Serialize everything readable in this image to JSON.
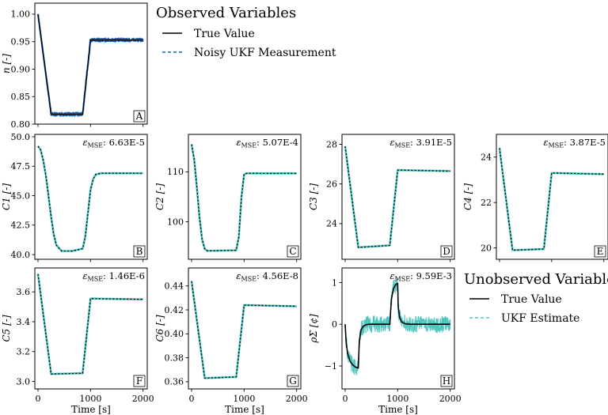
{
  "legends": {
    "observed": {
      "title": "Observed Variables",
      "entries": [
        "True Value",
        "Noisy UKF Measurement"
      ]
    },
    "unobserved": {
      "title": "Unobserved Variables",
      "entries": [
        "True Value",
        "UKF Estimate"
      ]
    }
  },
  "colors": {
    "true": "#000000",
    "measurement": "#1f5fa8",
    "estimate": "#4ec7c0"
  },
  "chart_data": [
    {
      "id": "A",
      "type": "line",
      "ylabel": "n [-]",
      "ylim": [
        0.8,
        1.02
      ],
      "xlim": [
        -60,
        2080
      ],
      "yticks": [
        0.8,
        0.85,
        0.9,
        0.95,
        1.0
      ],
      "ytick_labels": [
        "0.80",
        "0.85",
        "0.90",
        "0.95",
        "1.00"
      ],
      "xticks": [],
      "xlabel": "",
      "mse": "",
      "series": [
        {
          "name": "True Value",
          "x": [
            0,
            250,
            850,
            1000,
            2000
          ],
          "y": [
            1.0,
            0.818,
            0.818,
            0.953,
            0.953
          ]
        },
        {
          "name": "Noisy UKF Measurement",
          "x": [
            0,
            250,
            850,
            1000,
            2000
          ],
          "y": [
            1.0,
            0.818,
            0.818,
            0.953,
            0.953
          ],
          "noise": 0.003
        }
      ]
    },
    {
      "id": "B",
      "type": "line",
      "ylabel": "C1 [-]",
      "ylim": [
        39.6,
        50.2
      ],
      "xlim": [
        -60,
        2080
      ],
      "yticks": [
        40,
        42.5,
        45,
        47.5,
        50
      ],
      "ytick_labels": [
        "40.0",
        "42.5",
        "45.0",
        "47.5",
        "50.0"
      ],
      "xticks": [],
      "xlabel": "",
      "mse": "6.63E-5",
      "series": [
        {
          "name": "True Value",
          "x": [
            0,
            50,
            100,
            150,
            200,
            250,
            300,
            350,
            450,
            650,
            850,
            900,
            950,
            1000,
            1050,
            1100,
            1200,
            1400,
            2000
          ],
          "y": [
            49.2,
            48.9,
            48.0,
            46.7,
            45.0,
            43.2,
            41.7,
            40.8,
            40.3,
            40.3,
            40.5,
            41.5,
            43.5,
            45.5,
            46.4,
            46.8,
            46.9,
            46.9,
            46.9
          ]
        },
        {
          "name": "UKF Estimate",
          "x": [
            0,
            50,
            100,
            150,
            200,
            250,
            300,
            350,
            450,
            650,
            850,
            900,
            950,
            1000,
            1050,
            1100,
            1200,
            1400,
            2000
          ],
          "y": [
            49.2,
            48.9,
            48.0,
            46.7,
            45.0,
            43.2,
            41.7,
            40.8,
            40.3,
            40.3,
            40.5,
            41.5,
            43.5,
            45.5,
            46.4,
            46.8,
            46.9,
            46.9,
            46.9
          ]
        }
      ]
    },
    {
      "id": "C",
      "type": "line",
      "ylabel": "C2 [-]",
      "ylim": [
        92.5,
        117.5
      ],
      "xlim": [
        -60,
        2080
      ],
      "yticks": [
        100,
        110
      ],
      "ytick_labels": [
        "100",
        "110"
      ],
      "xticks": [],
      "xlabel": "",
      "mse": "5.07E-4",
      "series": [
        {
          "name": "True Value",
          "x": [
            0,
            50,
            100,
            150,
            200,
            250,
            300,
            350,
            850,
            900,
            950,
            1000,
            1050,
            2000
          ],
          "y": [
            115.5,
            112.5,
            107.0,
            101.0,
            96.5,
            94.6,
            94.2,
            94.2,
            94.3,
            97.0,
            105.0,
            109.5,
            109.7,
            109.7
          ]
        },
        {
          "name": "UKF Estimate",
          "x": [
            0,
            50,
            100,
            150,
            200,
            250,
            300,
            350,
            850,
            900,
            950,
            1000,
            1050,
            2000
          ],
          "y": [
            115.5,
            112.5,
            107.0,
            101.0,
            96.5,
            94.6,
            94.2,
            94.2,
            94.3,
            97.0,
            105.0,
            109.5,
            109.7,
            109.7
          ]
        }
      ]
    },
    {
      "id": "D",
      "type": "line",
      "ylabel": "C3 [-]",
      "ylim": [
        22.2,
        28.5
      ],
      "xlim": [
        -60,
        2080
      ],
      "yticks": [
        24,
        26,
        28
      ],
      "ytick_labels": [
        "24",
        "26",
        "28"
      ],
      "xticks": [],
      "xlabel": "",
      "mse": "3.91E-5",
      "series": [
        {
          "name": "True Value",
          "x": [
            0,
            250,
            850,
            1000,
            2000
          ],
          "y": [
            27.9,
            22.8,
            22.9,
            26.7,
            26.65
          ]
        },
        {
          "name": "UKF Estimate",
          "x": [
            0,
            250,
            850,
            1000,
            2000
          ],
          "y": [
            27.9,
            22.8,
            22.9,
            26.7,
            26.65
          ]
        }
      ]
    },
    {
      "id": "E",
      "type": "line",
      "ylabel": "C4 [-]",
      "ylim": [
        19.5,
        25.0
      ],
      "xlim": [
        -60,
        2080
      ],
      "yticks": [
        20,
        22,
        24
      ],
      "ytick_labels": [
        "20",
        "22",
        "24"
      ],
      "xticks": [],
      "xlabel": "",
      "mse": "3.87E-5",
      "series": [
        {
          "name": "True Value",
          "x": [
            0,
            250,
            850,
            1000,
            2000
          ],
          "y": [
            24.4,
            19.9,
            19.95,
            23.3,
            23.25
          ]
        },
        {
          "name": "UKF Estimate",
          "x": [
            0,
            250,
            850,
            1000,
            2000
          ],
          "y": [
            24.4,
            19.9,
            19.95,
            23.3,
            23.25
          ]
        }
      ]
    },
    {
      "id": "F",
      "type": "line",
      "ylabel": "C5 [-]",
      "ylim": [
        2.95,
        3.76
      ],
      "xlim": [
        -60,
        2080
      ],
      "yticks": [
        3.0,
        3.2,
        3.4,
        3.6
      ],
      "ytick_labels": [
        "3.0",
        "3.2",
        "3.4",
        "3.6"
      ],
      "xticks": [
        0,
        1000,
        2000
      ],
      "xtick_labels": [
        "0",
        "1000",
        "2000"
      ],
      "xlabel": "Time [s]",
      "mse": "1.46E-6",
      "series": [
        {
          "name": "True Value",
          "x": [
            0,
            250,
            850,
            1000,
            2000
          ],
          "y": [
            3.72,
            3.05,
            3.055,
            3.555,
            3.55
          ]
        },
        {
          "name": "UKF Estimate",
          "x": [
            0,
            250,
            850,
            1000,
            2000
          ],
          "y": [
            3.72,
            3.05,
            3.055,
            3.555,
            3.55
          ]
        }
      ]
    },
    {
      "id": "G",
      "type": "line",
      "ylabel": "C6 [-]",
      "ylim": [
        0.354,
        0.455
      ],
      "xlim": [
        -60,
        2080
      ],
      "yticks": [
        0.36,
        0.38,
        0.4,
        0.42,
        0.44
      ],
      "ytick_labels": [
        "0.36",
        "0.38",
        "0.40",
        "0.42",
        "0.44"
      ],
      "xticks": [
        0,
        1000,
        2000
      ],
      "xtick_labels": [
        "0",
        "1000",
        "2000"
      ],
      "xlabel": "Time [s]",
      "mse": "4.56E-8",
      "series": [
        {
          "name": "True Value",
          "x": [
            0,
            250,
            850,
            1000,
            2000
          ],
          "y": [
            0.444,
            0.363,
            0.364,
            0.424,
            0.423
          ]
        },
        {
          "name": "UKF Estimate",
          "x": [
            0,
            250,
            850,
            1000,
            2000
          ],
          "y": [
            0.444,
            0.363,
            0.364,
            0.424,
            0.423
          ]
        }
      ]
    },
    {
      "id": "H",
      "type": "line",
      "ylabel": "ρΣ [¢]",
      "ylim": [
        -1.55,
        1.35
      ],
      "xlim": [
        -60,
        2080
      ],
      "yticks": [
        -1,
        0,
        1
      ],
      "ytick_labels": [
        "−1",
        "0",
        "1"
      ],
      "xticks": [
        0,
        1000,
        2000
      ],
      "xtick_labels": [
        "0",
        "1000",
        "2000"
      ],
      "xlabel": "Time [s]",
      "mse": "9.59E-3",
      "series": [
        {
          "name": "True Value",
          "x": [
            0,
            20,
            50,
            100,
            150,
            200,
            250,
            270,
            300,
            340,
            400,
            450,
            850,
            880,
            920,
            960,
            1000,
            1010,
            1040,
            1080,
            1150,
            1250,
            2000
          ],
          "y": [
            0,
            -0.45,
            -0.72,
            -0.9,
            -0.98,
            -1.03,
            -1.05,
            -0.4,
            -0.15,
            -0.05,
            -0.01,
            0,
            0,
            0.6,
            0.85,
            0.95,
            0.98,
            0.4,
            0.15,
            0.05,
            0.01,
            0,
            0
          ]
        },
        {
          "name": "UKF Estimate",
          "x": [
            0,
            20,
            50,
            100,
            150,
            200,
            250,
            270,
            300,
            340,
            400,
            450,
            850,
            880,
            920,
            960,
            1000,
            1010,
            1040,
            1080,
            1150,
            1250,
            2000
          ],
          "y": [
            0,
            -0.45,
            -0.72,
            -0.9,
            -0.98,
            -1.03,
            -1.05,
            -0.4,
            -0.15,
            -0.05,
            -0.01,
            0,
            0,
            0.6,
            0.85,
            0.95,
            0.98,
            0.4,
            0.15,
            0.05,
            0.01,
            0,
            0
          ],
          "noise": 0.2
        }
      ]
    }
  ]
}
